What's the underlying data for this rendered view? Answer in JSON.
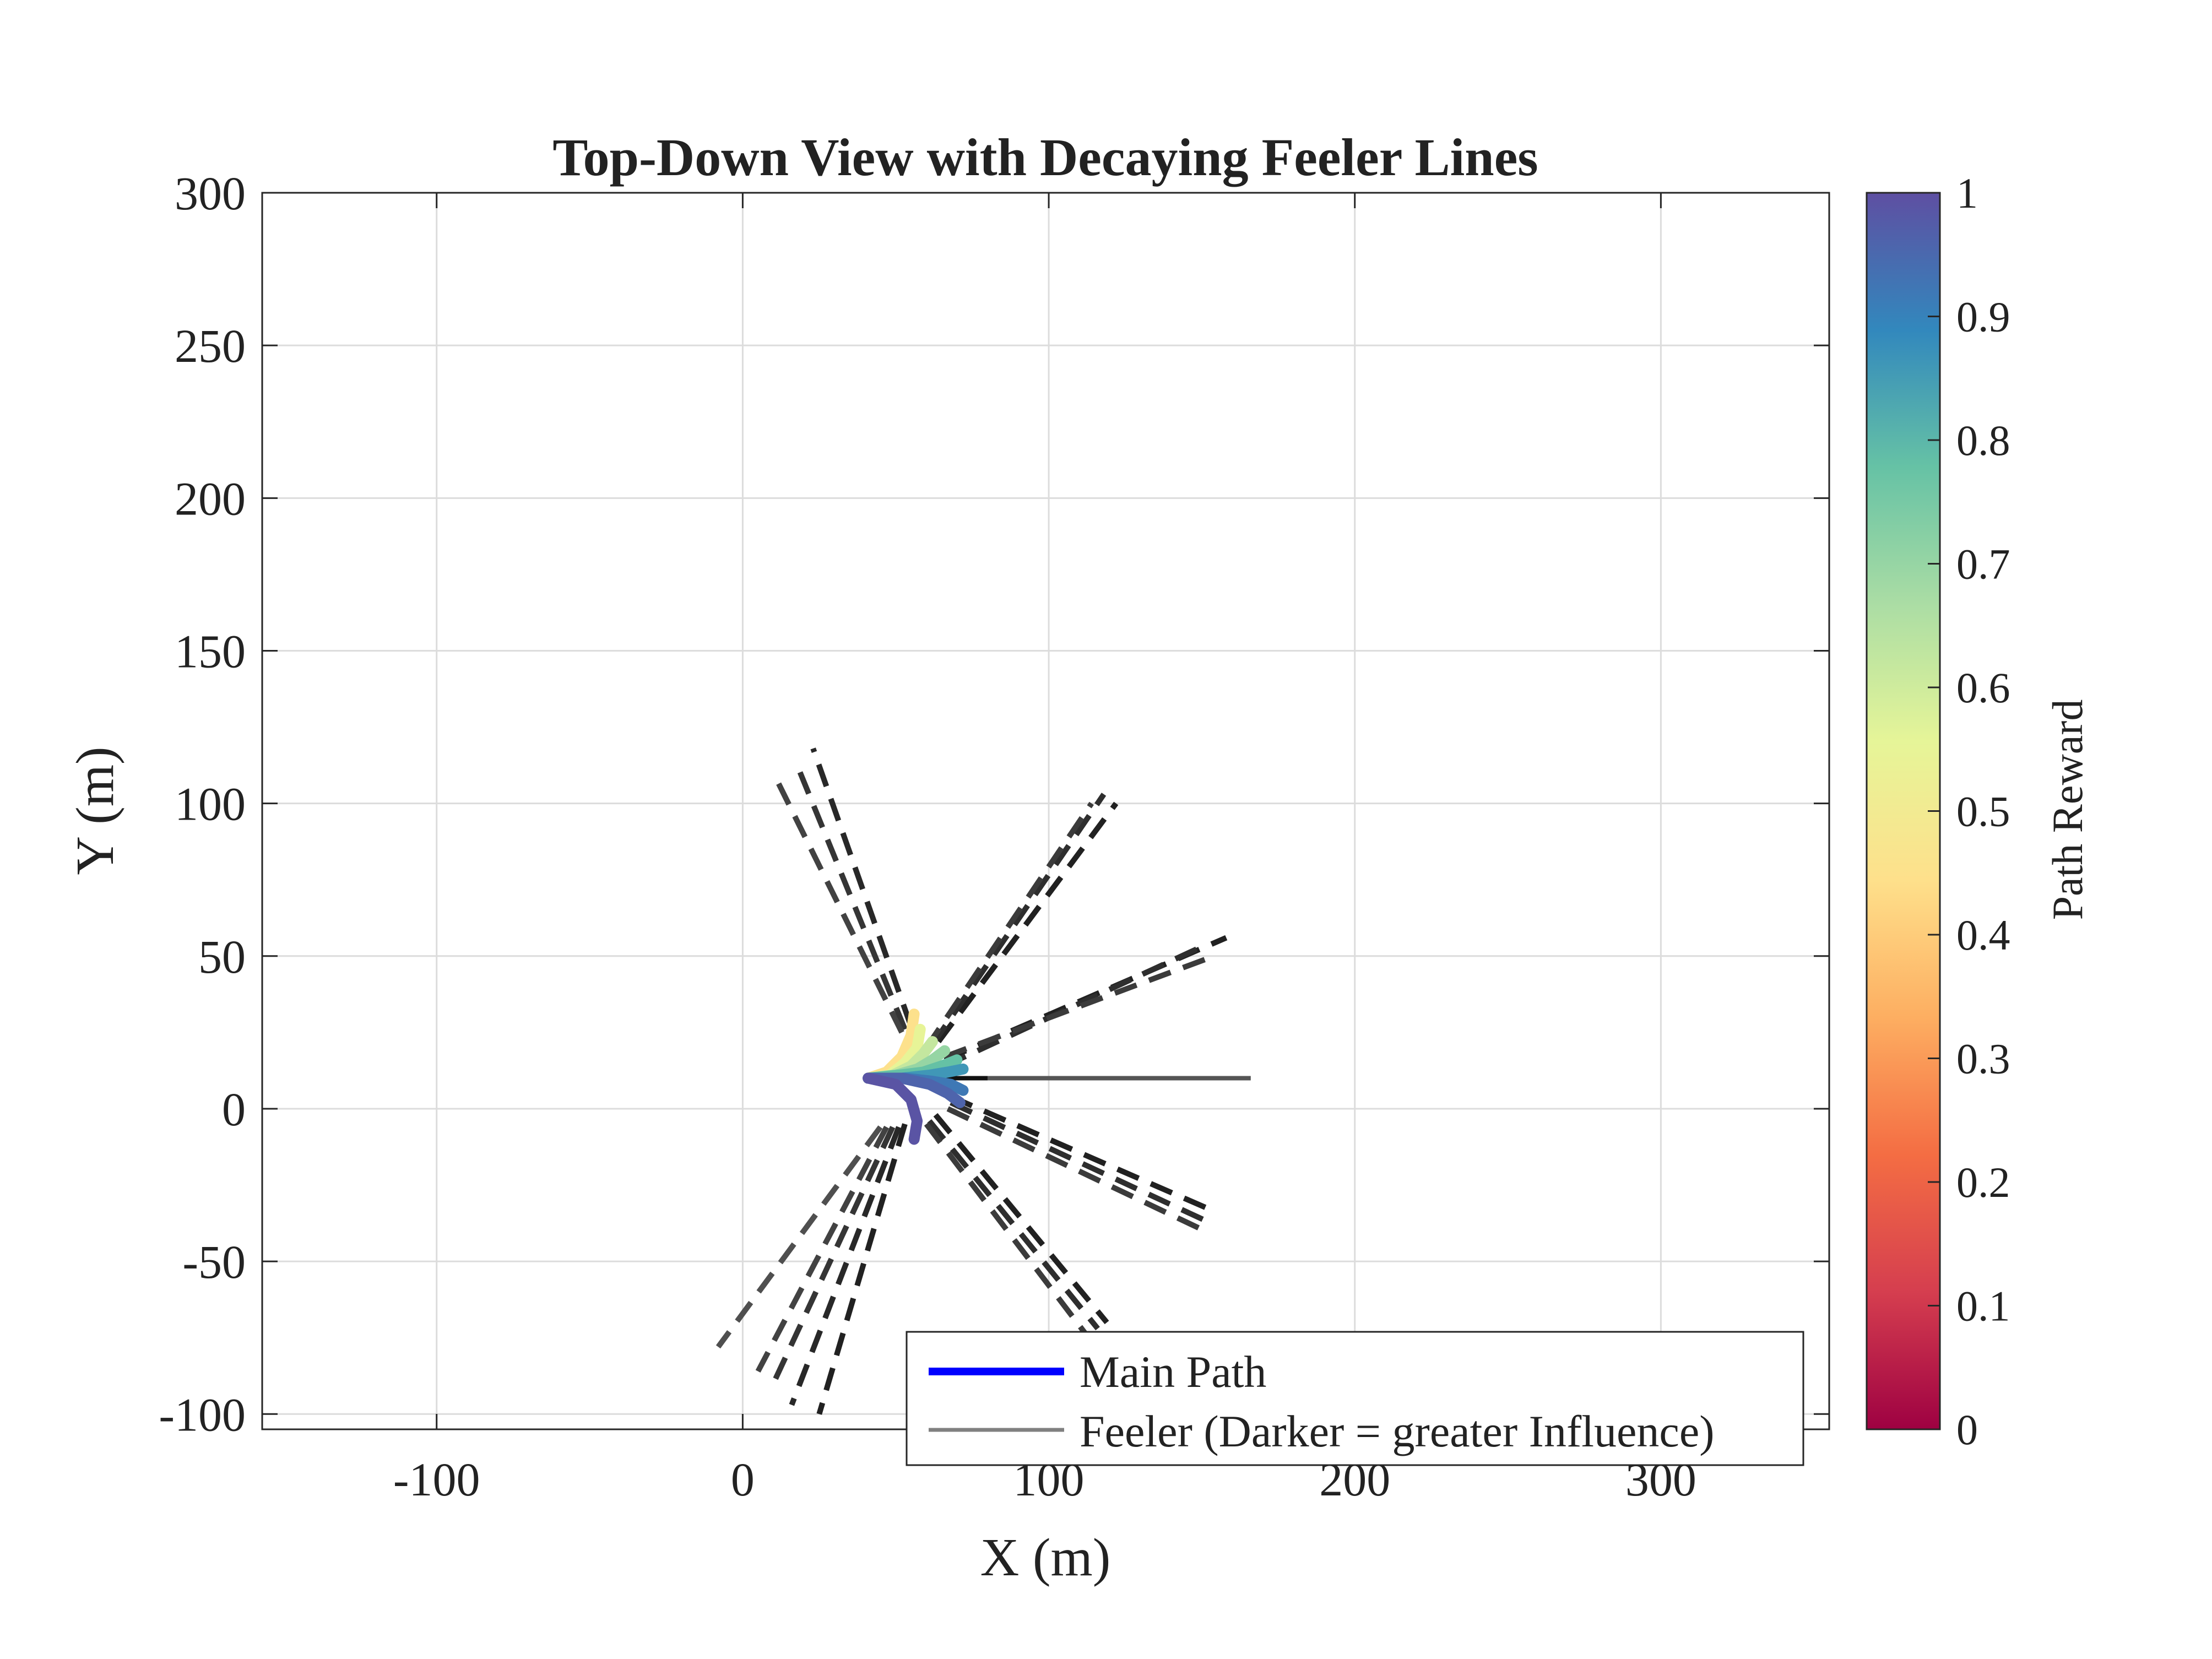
{
  "chart_data": {
    "type": "line",
    "title": "Top-Down View with Decaying Feeler Lines",
    "xlabel": "X (m)",
    "ylabel": "Y (m)",
    "xlim": [
      -157,
      355
    ],
    "ylim": [
      -105,
      300
    ],
    "xticks": [
      -100,
      0,
      100,
      200,
      300
    ],
    "yticks": [
      -100,
      -50,
      0,
      50,
      100,
      150,
      200,
      250,
      300
    ],
    "grid": true,
    "colorbar": {
      "label": "Path Reward",
      "colormap": "Spectral",
      "range": [
        0,
        1
      ],
      "ticks": [
        "0",
        "0.1",
        "0.2",
        "0.3",
        "0.4",
        "0.5",
        "0.6",
        "0.7",
        "0.8",
        "0.9",
        "1"
      ],
      "stops": [
        "#9e0142",
        "#d53e4f",
        "#f46d43",
        "#fdae61",
        "#fee08b",
        "#e6f598",
        "#abdda4",
        "#66c2a5",
        "#3288bd",
        "#5e4fa2"
      ]
    },
    "legend": {
      "placement": "bottom-right",
      "entries": [
        {
          "label": "Main Path",
          "color": "#0000ff"
        },
        {
          "label": "Feeler (Darker = greater Influence)",
          "color": "#808080"
        }
      ]
    },
    "origin": [
      41,
      10
    ],
    "main_path": {
      "x": [
        41,
        54,
        67,
        80,
        100,
        130,
        166
      ],
      "y": [
        10,
        10,
        10,
        10,
        10,
        10,
        10
      ]
    },
    "paths": [
      {
        "reward": 0.45,
        "x": [
          41,
          47,
          52,
          55,
          56
        ],
        "y": [
          10,
          12,
          17,
          24,
          31
        ]
      },
      {
        "reward": 0.55,
        "x": [
          41,
          48,
          53,
          57,
          58
        ],
        "y": [
          10,
          11,
          15,
          20,
          26
        ]
      },
      {
        "reward": 0.62,
        "x": [
          41,
          49,
          55,
          59,
          62
        ],
        "y": [
          10,
          11,
          14,
          18,
          22
        ]
      },
      {
        "reward": 0.7,
        "x": [
          41,
          50,
          57,
          62,
          66
        ],
        "y": [
          10,
          11,
          13,
          16,
          19
        ]
      },
      {
        "reward": 0.78,
        "x": [
          41,
          51,
          59,
          65,
          70
        ],
        "y": [
          10,
          11,
          12,
          14,
          16
        ]
      },
      {
        "reward": 0.86,
        "x": [
          41,
          52,
          61,
          67,
          72
        ],
        "y": [
          10,
          10,
          11,
          12,
          13
        ]
      },
      {
        "reward": 0.92,
        "x": [
          41,
          53,
          62,
          68,
          72
        ],
        "y": [
          10,
          10,
          9,
          8,
          6
        ]
      },
      {
        "reward": 0.96,
        "x": [
          41,
          52,
          61,
          67,
          71
        ],
        "y": [
          10,
          10,
          8,
          5,
          2
        ]
      },
      {
        "reward": 0.99,
        "x": [
          41,
          50,
          55,
          57,
          56
        ],
        "y": [
          10,
          8,
          3,
          -4,
          -10
        ]
      }
    ],
    "feelers": [
      {
        "darkness": 0.85,
        "x": [
          55,
          23
        ],
        "y": [
          27,
          118
        ]
      },
      {
        "darkness": 0.75,
        "x": [
          53,
          18
        ],
        "y": [
          26,
          112
        ]
      },
      {
        "darkness": 0.65,
        "x": [
          52,
          10
        ],
        "y": [
          25,
          110
        ]
      },
      {
        "darkness": 0.9,
        "x": [
          64,
          122
        ],
        "y": [
          22,
          100
        ]
      },
      {
        "darkness": 0.8,
        "x": [
          62,
          118
        ],
        "y": [
          21,
          103
        ]
      },
      {
        "darkness": 0.7,
        "x": [
          60,
          114
        ],
        "y": [
          20,
          100
        ]
      },
      {
        "darkness": 0.9,
        "x": [
          66,
          158
        ],
        "y": [
          16,
          56
        ]
      },
      {
        "darkness": 0.8,
        "x": [
          66,
          152
        ],
        "y": [
          14,
          54
        ]
      },
      {
        "darkness": 0.7,
        "x": [
          66,
          154
        ],
        "y": [
          17,
          50
        ]
      },
      {
        "darkness": 0.9,
        "x": [
          68,
          155
        ],
        "y": [
          4,
          -34
        ]
      },
      {
        "darkness": 0.8,
        "x": [
          68,
          152
        ],
        "y": [
          2,
          -37
        ]
      },
      {
        "darkness": 0.7,
        "x": [
          67,
          151
        ],
        "y": [
          0,
          -40
        ]
      },
      {
        "darkness": 0.9,
        "x": [
          63,
          119
        ],
        "y": [
          -2,
          -70
        ]
      },
      {
        "darkness": 0.8,
        "x": [
          61,
          116
        ],
        "y": [
          -4,
          -72
        ]
      },
      {
        "darkness": 0.7,
        "x": [
          60,
          113
        ],
        "y": [
          -5,
          -75
        ]
      },
      {
        "darkness": 0.9,
        "x": [
          53,
          25
        ],
        "y": [
          -5,
          -100
        ]
      },
      {
        "darkness": 0.85,
        "x": [
          51,
          16
        ],
        "y": [
          -6,
          -97
        ]
      },
      {
        "darkness": 0.75,
        "x": [
          49,
          10
        ],
        "y": [
          -6,
          -90
        ]
      },
      {
        "darkness": 0.65,
        "x": [
          47,
          5
        ],
        "y": [
          -6,
          -86
        ]
      },
      {
        "darkness": 0.55,
        "x": [
          45,
          -8
        ],
        "y": [
          -6,
          -78
        ]
      }
    ]
  }
}
